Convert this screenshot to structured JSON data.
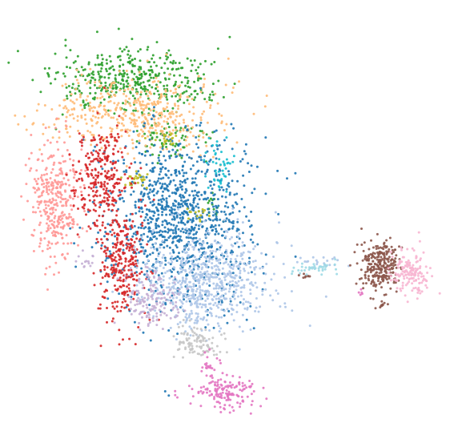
{
  "chart_data": {
    "type": "scatter",
    "title": "",
    "xlabel": "",
    "ylabel": "",
    "axes_visible": false,
    "grid": false,
    "legend": "none",
    "xlim": [
      0,
      100
    ],
    "ylim": [
      0,
      100
    ],
    "marker_size": "small",
    "point_alpha": 0.9,
    "series": [
      {
        "color": "#2ca02c",
        "clusters": [
          {
            "cx": 27.3,
            "cy": 84.0,
            "sx": 9.0,
            "sy": 3.8,
            "n": 430
          },
          {
            "cx": 36.2,
            "cy": 70.2,
            "sx": 4.7,
            "sy": 2.3,
            "n": 70
          },
          {
            "cx": 45.8,
            "cy": 53.9,
            "sx": 0.9,
            "sy": 1.8,
            "n": 14
          }
        ]
      },
      {
        "color": "#ffbb78",
        "clusters": [
          {
            "cx": 28.0,
            "cy": 76.5,
            "sx": 9.6,
            "sy": 4.4,
            "n": 470
          }
        ]
      },
      {
        "color": "#1f77b4",
        "clusters": [
          {
            "cx": 37.8,
            "cy": 51.5,
            "sx": 8.1,
            "sy": 10.4,
            "n": 1030
          }
        ]
      },
      {
        "color": "#17becf",
        "clusters": [
          {
            "cx": 47.6,
            "cy": 63.7,
            "sx": 1.6,
            "sy": 3.0,
            "n": 45
          }
        ]
      },
      {
        "color": "#bcbd22",
        "clusters": [
          {
            "cx": 28.0,
            "cy": 60.6,
            "sx": 1.5,
            "sy": 1.1,
            "n": 28
          },
          {
            "cx": 34.7,
            "cy": 70.4,
            "sx": 2.2,
            "sy": 0.8,
            "n": 20
          },
          {
            "cx": 42.3,
            "cy": 52.2,
            "sx": 1.3,
            "sy": 0.9,
            "n": 14
          }
        ]
      },
      {
        "color": "#ff9896",
        "clusters": [
          {
            "cx": 9.7,
            "cy": 55.2,
            "sx": 3.2,
            "sy": 6.8,
            "n": 340
          }
        ]
      },
      {
        "color": "#d62728",
        "clusters": [
          {
            "cx": 19.8,
            "cy": 61.3,
            "sx": 3.2,
            "sy": 5.6,
            "n": 260
          },
          {
            "cx": 24.5,
            "cy": 41.4,
            "sx": 2.6,
            "sy": 7.7,
            "n": 300
          }
        ]
      },
      {
        "color": "#aec7e8",
        "clusters": [
          {
            "cx": 44.2,
            "cy": 36.2,
            "sx": 7.0,
            "sy": 5.8,
            "n": 660
          },
          {
            "cx": 71.5,
            "cy": 40.4,
            "sx": 2.8,
            "sy": 0.9,
            "n": 22
          }
        ]
      },
      {
        "color": "#c5b0d5",
        "clusters": [
          {
            "cx": 32.2,
            "cy": 31.9,
            "sx": 3.3,
            "sy": 3.5,
            "n": 150
          },
          {
            "cx": 16.6,
            "cy": 41.6,
            "sx": 1.0,
            "sy": 0.9,
            "n": 14
          }
        ]
      },
      {
        "color": "#c7c7c7",
        "clusters": [
          {
            "cx": 42.0,
            "cy": 21.5,
            "sx": 2.8,
            "sy": 2.2,
            "n": 100
          }
        ]
      },
      {
        "color": "#e377c2",
        "clusters": [
          {
            "cx": 48.6,
            "cy": 9.7,
            "sx": 3.7,
            "sy": 2.0,
            "n": 150
          },
          {
            "cx": 45.5,
            "cy": 16.3,
            "sx": 1.3,
            "sy": 1.5,
            "n": 22
          },
          {
            "cx": 79.7,
            "cy": 33.4,
            "sx": 0.4,
            "sy": 0.4,
            "n": 5
          }
        ]
      },
      {
        "color": "#9edae5",
        "clusters": [
          {
            "cx": 69.2,
            "cy": 39.2,
            "sx": 3.0,
            "sy": 0.8,
            "n": 38
          }
        ]
      },
      {
        "color": "#8c564b",
        "clusters": [
          {
            "cx": 84.1,
            "cy": 40.1,
            "sx": 2.3,
            "sy": 2.9,
            "n": 260
          },
          {
            "cx": 85.0,
            "cy": 31.0,
            "sx": 0.4,
            "sy": 0.8,
            "n": 10
          },
          {
            "cx": 67.2,
            "cy": 37.6,
            "sx": 0.8,
            "sy": 0.4,
            "n": 8
          }
        ]
      },
      {
        "color": "#f7b6d2",
        "clusters": [
          {
            "cx": 91.3,
            "cy": 38.1,
            "sx": 2.4,
            "sy": 2.7,
            "n": 160
          }
        ]
      }
    ]
  }
}
